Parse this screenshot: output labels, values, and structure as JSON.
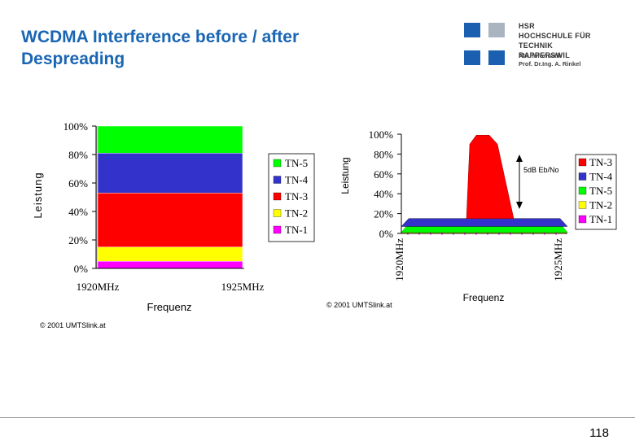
{
  "slide": {
    "title_line1": "WCDMA Interference before / after",
    "title_line2": "Despreading",
    "page_number": "118"
  },
  "logo": {
    "line1": "HSR",
    "line2": "HOCHSCHULE FÜR TECHNIK",
    "line3": "RAPPERSWIL",
    "line4": "Abt. Informatik",
    "line5": "Prof. Dr.Ing. A. Rinkel",
    "colors": [
      "#1a5fb0",
      "#aab4c0"
    ]
  },
  "chart_data": [
    {
      "type": "bar",
      "stacked": true,
      "categories": [
        "1920MHz"
      ],
      "x_tick_labels": [
        "1920MHz",
        "1925MHz"
      ],
      "series": [
        {
          "name": "TN-1",
          "values": [
            5
          ],
          "color": "#ff00ff"
        },
        {
          "name": "TN-2",
          "values": [
            10
          ],
          "color": "#ffff00"
        },
        {
          "name": "TN-3",
          "values": [
            38
          ],
          "color": "#ff0000"
        },
        {
          "name": "TN-4",
          "values": [
            28
          ],
          "color": "#3333cc"
        },
        {
          "name": "TN-5",
          "values": [
            19
          ],
          "color": "#00ff00"
        }
      ],
      "y_ticks": [
        "0%",
        "20%",
        "40%",
        "60%",
        "80%",
        "100%"
      ],
      "ylim": [
        0,
        100
      ],
      "xlabel": "Frequenz",
      "ylabel": "Leistung",
      "legend_position": "right",
      "copyright": "© 2001 UMTSlink.at"
    },
    {
      "type": "area",
      "stacked": true,
      "x_tick_labels": [
        "1920MHz",
        "1925MHz"
      ],
      "series": [
        {
          "name": "TN-3",
          "color": "#ff0000"
        },
        {
          "name": "TN-4",
          "color": "#3333cc"
        },
        {
          "name": "TN-5",
          "color": "#00ff00"
        },
        {
          "name": "TN-2",
          "color": "#ffff00"
        },
        {
          "name": "TN-1",
          "color": "#ff00ff"
        }
      ],
      "y_ticks": [
        "0%",
        "20%",
        "40%",
        "60%",
        "80%",
        "100%"
      ],
      "ylim": [
        0,
        100
      ],
      "xlabel": "Frequenz",
      "ylabel": "Leistung",
      "annotation": "5dB Eb/No",
      "legend_position": "right",
      "copyright": "© 2001 UMTSlink.at"
    }
  ]
}
